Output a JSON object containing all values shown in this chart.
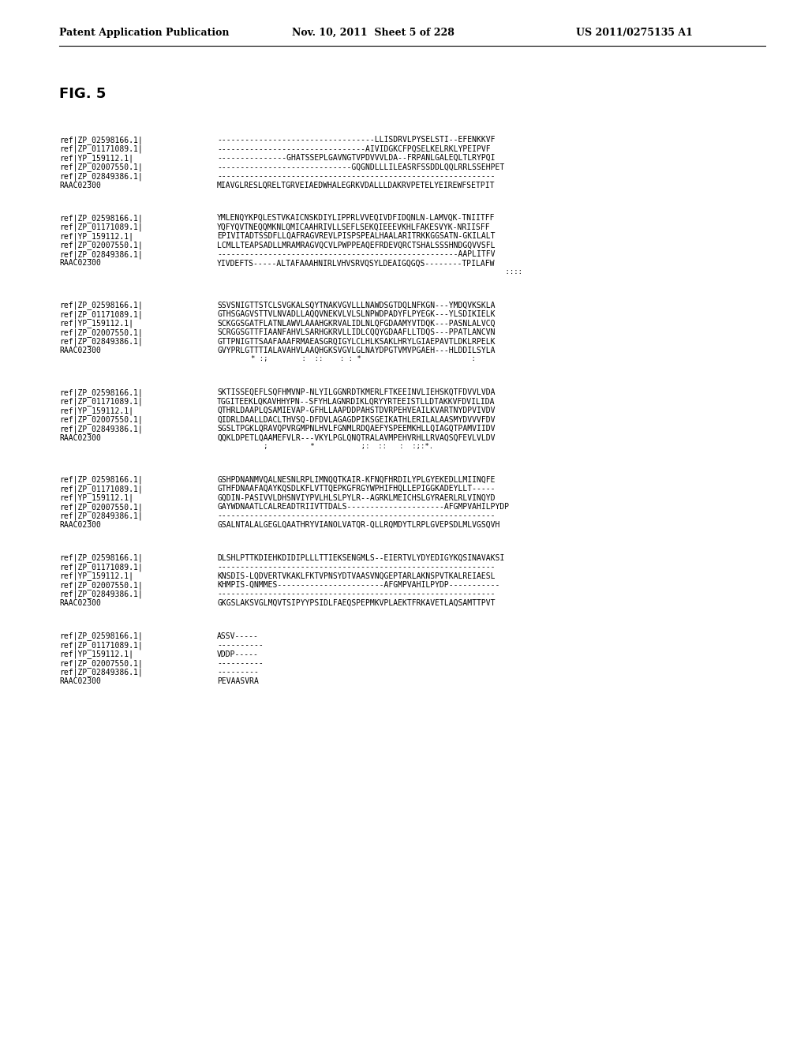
{
  "header_left": "Patent Application Publication",
  "header_mid": "Nov. 10, 2011  Sheet 5 of 228",
  "header_right": "US 2011/0275135 A1",
  "fig_label": "FIG. 5",
  "background_color": "#ffffff",
  "text_color": "#000000",
  "blocks": [
    {
      "lines": [
        [
          "ref|ZP_02598166.1|",
          "----------------------------------LLISDRVLPYSELSTI--EFENKKVF"
        ],
        [
          "ref|ZP_01171089.1|",
          "--------------------------------AIVIDGKCFPQSELKELRKLYPEIPVF"
        ],
        [
          "ref|YP_159112.1|",
          "---------------GHATSSEPLGAVNGTVPDVVVLDA--FRPANLGALEQLTLRYPQI"
        ],
        [
          "ref|ZP_02007550.1|",
          "-----------------------------GQGNDLLLILEASRFSSDDLQQLRRLSSEHPET"
        ],
        [
          "ref|ZP_02849386.1|",
          "------------------------------------------------------------"
        ],
        [
          "RAAC02300",
          "MIAVGLRESLQRELTGRVEIAEDWHALEGRKVDALLLDAKRVPETELYEIREWFSETPIT"
        ]
      ],
      "conservation": ""
    },
    {
      "lines": [
        [
          "ref|ZP_02598166.1|",
          "YMLENQYKPQLESTVKAICNSKDIYLIPPRLVVEQIVDFIDQNLN-LAMVQK-TNIITFF"
        ],
        [
          "ref|ZP_01171089.1|",
          "YQFYQVTNEQQMKNLQMICAAHRIVLLSEFLSEKQIEEEVKHLFAKESVYK-NRIISFF"
        ],
        [
          "ref|YP_159112.1|",
          "EPIVITADTSSDFLLQAFRAGVREVLPISPSPEALHAALARITRKKGGSATN-GKILALT"
        ],
        [
          "ref|ZP_02007550.1|",
          "LCMLLTEAPSADLLMRAMRAGVQCVLPWPPEAQEFRDEVQRCTSHALSSSHNDGQVVSFL"
        ],
        [
          "ref|ZP_02849386.1|",
          "----------------------------------------------------AAPLITFV"
        ],
        [
          "RAAC02300",
          "YIVDEFTS-----ALTAFAAAHNIRLVHVSRVQSYLDEAIGQGQS--------TPILAFW"
        ]
      ],
      "conservation": "                                                                    ::::"
    },
    {
      "lines": [
        [
          "ref|ZP_02598166.1|",
          "SSVSNIGTTSTCLSVGKALSQYTNAKVGVLLLNAWDSGTDQLNFKGN---YMDQVKSKLA"
        ],
        [
          "ref|ZP_01171089.1|",
          "GTHSGAGVSTTVLNVADLLAQQVNEKVLVLSLNPWDPADYFLPYEGK---YLSDIKIELK"
        ],
        [
          "ref|YP_159112.1|",
          "SCKGGSGATFLATNLAWVLAAAHGKRVALIDLNLQFGDAAMYVTDQK---PASNLALVCQ"
        ],
        [
          "ref|ZP_02007550.1|",
          "SCRGGSGTTFIAANFAHVLSARHGKRVLLIDLCQQYGDAAFLLTDQS---PPATLANCVN"
        ],
        [
          "ref|ZP_02849386.1|",
          "GTTPNIGTTSAAFAAAFRMAEASGRQIGYLCLHLKSAKLHRYLGIAEPAVTLDKLRPELK"
        ],
        [
          "RAAC02300",
          "GVYPRLGTTTIALAVAHVLAAQHGKSVGVLGLNAYDPGTVMVPGAEH---HLDDILSYLA"
        ]
      ],
      "conservation": "        * :;        :  ::    : : *                          :"
    },
    {
      "lines": [
        [
          "ref|ZP_02598166.1|",
          "SKTISSEQEFLSQFHMVNP-NLYILGGNRDTKMERLFTKEEINVLIEHSKQTFDVVLVDA"
        ],
        [
          "ref|ZP_01171089.1|",
          "TGGITEEKLQKAVHHYPN--SFYHLAGNRDIKLQRYYRTEEISTLLDTAKKVFDVILIDA"
        ],
        [
          "ref|YP_159112.1|",
          "QTHRLDAAPLQSAMIEVAP-GFHLLAAPDDPAHSTDVRPEHVEAILKVARTNYDPVIVDV"
        ],
        [
          "ref|ZP_02007550.1|",
          "QIDRLDAALLDACLTHVSQ-DFDVLAGAGDPIKSGEIKATHLERILALAASMYDVVVFDV"
        ],
        [
          "ref|ZP_02849386.1|",
          "SGSLTPGKLQRAVQPVRGMPNLHVLFGNMLRDQAEFYSPEEMKHLLQIAGQTPAMVIIDV"
        ],
        [
          "RAAC02300",
          "QQKLDPETLQAAMEFVLR---VKYLPGLQNQTRALAVMPEHVRHLLRVAQSQFEVLVLDV"
        ]
      ],
      "conservation": "           ;          *           ;:  ::   :  :;:*."
    },
    {
      "lines": [
        [
          "ref|ZP_02598166.1|",
          "GSHPDNANMVQALNESNLRPLIMNQQTKAIR-KFNQFHRDILYPLGYEKEDLLMIINQFE"
        ],
        [
          "ref|ZP_01171089.1|",
          "GTHFDNAAFAQAYKQSDLKFLVTTQEPKGFRGYWPHIFHQLLEPIGGKADEYLLT-----"
        ],
        [
          "ref|YP_159112.1|",
          "GQDIN-PASIVVLDHSNVIYPVLHLSLPYLR--AGRKLMEICHSLGYRAERLRLVINQYD"
        ],
        [
          "ref|ZP_02007550.1|",
          "GAYWDNAATLCALREADTRIIVTTDALS---------------------AFGMPVAHILPYDP"
        ],
        [
          "ref|ZP_02849386.1|",
          "------------------------------------------------------------"
        ],
        [
          "RAAC02300",
          "GSALNTALALGEGLQAATHRYVIANOLVATQR-QLLRQMDYTLRPLGVEPSDLMLVGSQVH"
        ]
      ],
      "conservation": ""
    },
    {
      "lines": [
        [
          "ref|ZP_02598166.1|",
          "DLSHLPTTKDIEHKDIDIPLLLTTIEKSENGMLS--EIERTVLYDYEDIGYKQSINAVAKSI"
        ],
        [
          "ref|ZP_01171089.1|",
          "------------------------------------------------------------"
        ],
        [
          "ref|YP_159112.1|",
          "KNSDIS-LQDVERTVKAKLFKTVPNSYDTVAASVNQGEPTARLAKNSPVTKALREIAESL"
        ],
        [
          "ref|ZP_02007550.1|",
          "KHMPIS-QNMMES-----------------------AFGMPVAHILPYDP-----------"
        ],
        [
          "ref|ZP_02849386.1|",
          "------------------------------------------------------------"
        ],
        [
          "RAAC02300",
          "GKGSLAKSVGLMQVTSIPYYPSIDLFAEQSPEPMKVPLAEKTFRKAVETLAQSAMTTPVT"
        ]
      ],
      "conservation": ""
    },
    {
      "lines": [
        [
          "ref|ZP_02598166.1|",
          "ASSV-----"
        ],
        [
          "ref|ZP_01171089.1|",
          "----------"
        ],
        [
          "ref|YP_159112.1|",
          "VDDP-----"
        ],
        [
          "ref|ZP_02007550.1|",
          "----------"
        ],
        [
          "ref|ZP_02849386.1|",
          "---------"
        ],
        [
          "RAAC02300",
          "PEVAASVRA"
        ]
      ],
      "conservation": ""
    }
  ]
}
